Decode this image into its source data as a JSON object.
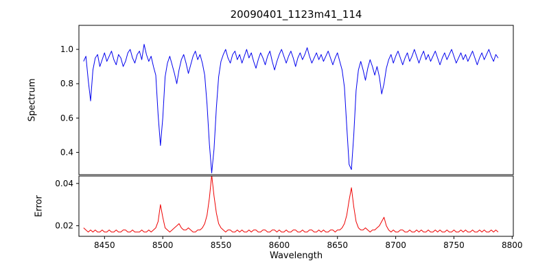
{
  "chart_data": {
    "type": "line",
    "title": "20090401_1123m41_114",
    "xlabel": "Wavelength",
    "xlim": [
      8428,
      8801
    ],
    "xticks": [
      8450,
      8500,
      8550,
      8600,
      8650,
      8700,
      8750,
      8800
    ],
    "xticklabels": [
      "8450",
      "8500",
      "8550",
      "8600",
      "8650",
      "8700",
      "8750",
      "8800"
    ],
    "line_color_spectrum": "#0000ee",
    "line_color_error": "#ee0000",
    "wavelength": [
      8432,
      8434,
      8436,
      8438,
      8440,
      8442,
      8444,
      8446,
      8448,
      8450,
      8452,
      8454,
      8456,
      8458,
      8460,
      8462,
      8464,
      8466,
      8468,
      8470,
      8472,
      8474,
      8476,
      8478,
      8480,
      8482,
      8484,
      8486,
      8488,
      8490,
      8492,
      8494,
      8496,
      8498,
      8500,
      8502,
      8504,
      8506,
      8508,
      8510,
      8512,
      8514,
      8516,
      8518,
      8520,
      8522,
      8524,
      8526,
      8528,
      8530,
      8532,
      8534,
      8536,
      8538,
      8540,
      8542,
      8544,
      8546,
      8548,
      8550,
      8552,
      8554,
      8556,
      8558,
      8560,
      8562,
      8564,
      8566,
      8568,
      8570,
      8572,
      8574,
      8576,
      8578,
      8580,
      8582,
      8584,
      8586,
      8588,
      8590,
      8592,
      8594,
      8596,
      8598,
      8600,
      8602,
      8604,
      8606,
      8608,
      8610,
      8612,
      8614,
      8616,
      8618,
      8620,
      8622,
      8624,
      8626,
      8628,
      8630,
      8632,
      8634,
      8636,
      8638,
      8640,
      8642,
      8644,
      8646,
      8648,
      8650,
      8652,
      8654,
      8656,
      8658,
      8660,
      8662,
      8664,
      8666,
      8668,
      8670,
      8672,
      8674,
      8676,
      8678,
      8680,
      8682,
      8684,
      8686,
      8688,
      8690,
      8692,
      8694,
      8696,
      8698,
      8700,
      8702,
      8704,
      8706,
      8708,
      8710,
      8712,
      8714,
      8716,
      8718,
      8720,
      8722,
      8724,
      8726,
      8728,
      8730,
      8732,
      8734,
      8736,
      8738,
      8740,
      8742,
      8744,
      8746,
      8748,
      8750,
      8752,
      8754,
      8756,
      8758,
      8760,
      8762,
      8764,
      8766,
      8768,
      8770,
      8772,
      8774,
      8776,
      8778,
      8780,
      8782,
      8784,
      8786,
      8788
    ],
    "panels": [
      {
        "name": "spectrum",
        "ylabel": "Spectrum",
        "color": "#0000ee",
        "ylim": [
          0.27,
          1.14
        ],
        "yticks": [
          0.4,
          0.6,
          0.8,
          1.0
        ],
        "yticklabels": [
          "0.4",
          "0.6",
          "0.8",
          "1.0"
        ],
        "values": [
          0.93,
          0.96,
          0.82,
          0.7,
          0.88,
          0.95,
          0.97,
          0.9,
          0.94,
          0.98,
          0.93,
          0.96,
          0.99,
          0.94,
          0.91,
          0.97,
          0.95,
          0.9,
          0.93,
          0.98,
          1.0,
          0.95,
          0.92,
          0.97,
          0.99,
          0.94,
          1.03,
          0.97,
          0.93,
          0.96,
          0.9,
          0.85,
          0.62,
          0.44,
          0.6,
          0.84,
          0.92,
          0.96,
          0.91,
          0.86,
          0.8,
          0.88,
          0.94,
          0.97,
          0.92,
          0.86,
          0.91,
          0.96,
          0.99,
          0.94,
          0.97,
          0.92,
          0.85,
          0.68,
          0.45,
          0.28,
          0.42,
          0.66,
          0.84,
          0.93,
          0.97,
          1.0,
          0.95,
          0.92,
          0.97,
          0.99,
          0.94,
          0.97,
          0.92,
          0.96,
          1.0,
          0.95,
          0.98,
          0.93,
          0.89,
          0.94,
          0.98,
          0.95,
          0.91,
          0.96,
          0.99,
          0.93,
          0.88,
          0.93,
          0.97,
          1.0,
          0.96,
          0.92,
          0.96,
          0.99,
          0.95,
          0.9,
          0.95,
          0.98,
          0.94,
          0.97,
          1.01,
          0.96,
          0.92,
          0.95,
          0.98,
          0.94,
          0.97,
          0.93,
          0.96,
          0.99,
          0.95,
          0.91,
          0.95,
          0.98,
          0.93,
          0.88,
          0.78,
          0.55,
          0.33,
          0.3,
          0.5,
          0.76,
          0.88,
          0.93,
          0.88,
          0.82,
          0.89,
          0.94,
          0.9,
          0.85,
          0.9,
          0.84,
          0.74,
          0.8,
          0.89,
          0.94,
          0.97,
          0.92,
          0.96,
          0.99,
          0.95,
          0.91,
          0.95,
          0.98,
          0.93,
          0.96,
          1.0,
          0.96,
          0.92,
          0.96,
          0.99,
          0.94,
          0.97,
          0.93,
          0.96,
          0.99,
          0.95,
          0.91,
          0.95,
          0.98,
          0.94,
          0.97,
          1.0,
          0.96,
          0.92,
          0.95,
          0.98,
          0.94,
          0.97,
          0.93,
          0.96,
          0.99,
          0.95,
          0.91,
          0.95,
          0.98,
          0.94,
          0.97,
          1.0,
          0.96,
          0.93,
          0.97,
          0.95
        ]
      },
      {
        "name": "error",
        "ylabel": "Error",
        "color": "#ee0000",
        "ylim": [
          0.015,
          0.0435
        ],
        "yticks": [
          0.02,
          0.04
        ],
        "yticklabels": [
          "0.02",
          "0.04"
        ],
        "values": [
          0.019,
          0.018,
          0.017,
          0.018,
          0.017,
          0.018,
          0.017,
          0.017,
          0.018,
          0.017,
          0.017,
          0.018,
          0.017,
          0.017,
          0.018,
          0.017,
          0.017,
          0.018,
          0.018,
          0.017,
          0.017,
          0.018,
          0.017,
          0.017,
          0.017,
          0.018,
          0.017,
          0.017,
          0.018,
          0.017,
          0.018,
          0.019,
          0.022,
          0.03,
          0.024,
          0.019,
          0.018,
          0.017,
          0.018,
          0.019,
          0.02,
          0.021,
          0.019,
          0.018,
          0.018,
          0.019,
          0.018,
          0.017,
          0.017,
          0.018,
          0.018,
          0.019,
          0.021,
          0.025,
          0.033,
          0.044,
          0.034,
          0.026,
          0.021,
          0.019,
          0.018,
          0.017,
          0.018,
          0.018,
          0.017,
          0.017,
          0.018,
          0.017,
          0.018,
          0.017,
          0.017,
          0.018,
          0.017,
          0.018,
          0.018,
          0.017,
          0.017,
          0.018,
          0.018,
          0.017,
          0.017,
          0.018,
          0.018,
          0.017,
          0.018,
          0.017,
          0.017,
          0.018,
          0.017,
          0.017,
          0.018,
          0.018,
          0.017,
          0.017,
          0.018,
          0.017,
          0.017,
          0.018,
          0.018,
          0.017,
          0.017,
          0.018,
          0.017,
          0.018,
          0.017,
          0.017,
          0.018,
          0.018,
          0.017,
          0.018,
          0.018,
          0.019,
          0.021,
          0.025,
          0.032,
          0.038,
          0.029,
          0.022,
          0.019,
          0.018,
          0.018,
          0.019,
          0.018,
          0.017,
          0.018,
          0.018,
          0.019,
          0.02,
          0.022,
          0.024,
          0.02,
          0.018,
          0.017,
          0.018,
          0.017,
          0.017,
          0.018,
          0.018,
          0.017,
          0.017,
          0.018,
          0.017,
          0.017,
          0.018,
          0.017,
          0.018,
          0.017,
          0.017,
          0.018,
          0.017,
          0.017,
          0.018,
          0.017,
          0.018,
          0.017,
          0.017,
          0.018,
          0.017,
          0.017,
          0.018,
          0.017,
          0.017,
          0.018,
          0.017,
          0.018,
          0.017,
          0.017,
          0.018,
          0.017,
          0.017,
          0.018,
          0.017,
          0.018,
          0.017,
          0.017,
          0.018,
          0.017,
          0.018,
          0.017
        ]
      }
    ]
  }
}
